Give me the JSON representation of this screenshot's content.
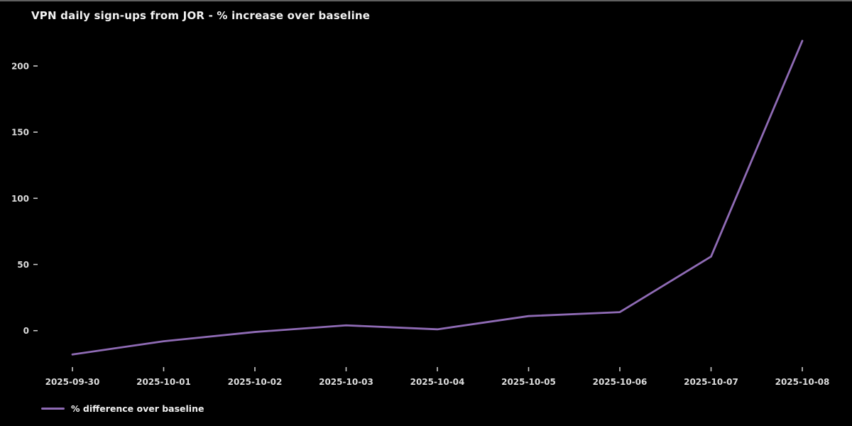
{
  "window": {
    "top_border_color": "#606060"
  },
  "chart": {
    "title": "VPN daily sign-ups from JOR - % increase over baseline",
    "legend_label": "% difference over baseline",
    "colors": {
      "background": "#000000",
      "line": "#8f6bb5",
      "title_text": "#f2f2f2",
      "tick_text": "#dcdcdc",
      "tick_mark": "#cccccc"
    }
  },
  "chart_data": {
    "type": "line",
    "title": "VPN daily sign-ups from JOR - % increase over baseline",
    "xlabel": "",
    "ylabel": "",
    "x": [
      "2025-09-30",
      "2025-10-01",
      "2025-10-02",
      "2025-10-03",
      "2025-10-04",
      "2025-10-05",
      "2025-10-06",
      "2025-10-07",
      "2025-10-08"
    ],
    "series": [
      {
        "name": "% difference over baseline",
        "color": "#8f6bb5",
        "values": [
          -18,
          -8,
          -1,
          4,
          1,
          11,
          14,
          56,
          219
        ]
      }
    ],
    "yticks": [
      0,
      50,
      100,
      150,
      200
    ],
    "ylim": [
      -35,
      235
    ],
    "grid": false,
    "legend_position": "lower-left-outside",
    "background": "black"
  }
}
